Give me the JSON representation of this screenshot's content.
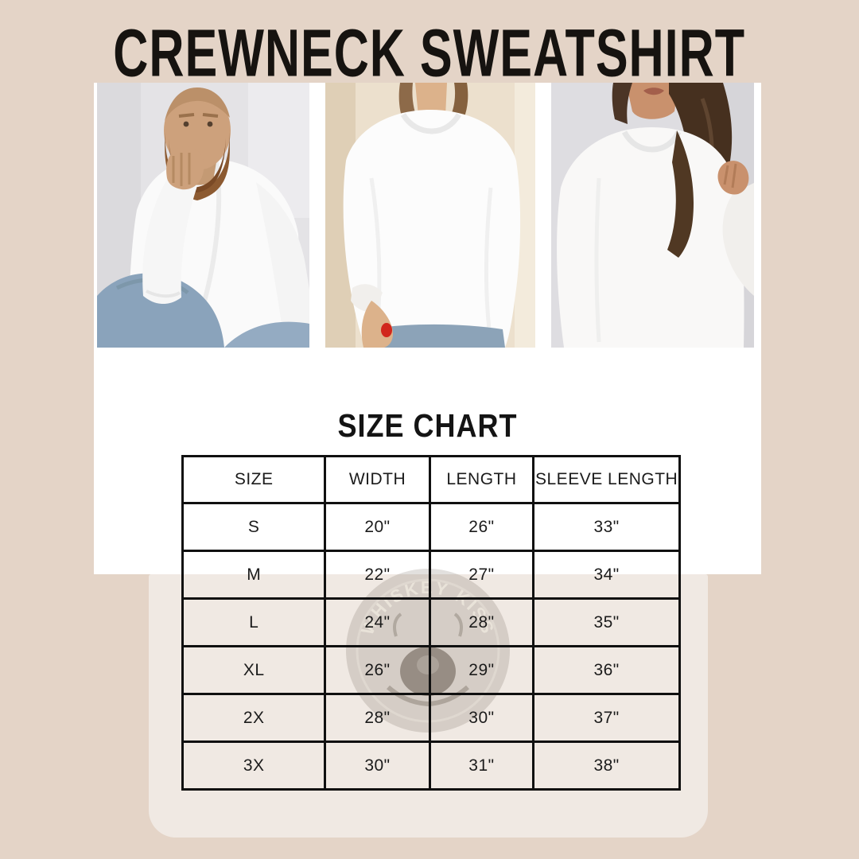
{
  "page": {
    "title": "CREWNECK SWEATSHIRT"
  },
  "photos": [
    {
      "label": "Bearded man sitting in white crewneck sweatshirt and jeans, chin resting on hand"
    },
    {
      "label": "Woman torso in oversized white crewneck sweatshirt, hand with red nail at jeans pocket"
    },
    {
      "label": "Woman with long dark wavy hair in white crewneck sweatshirt, hand raised to shoulder"
    }
  ],
  "chart_data": {
    "type": "table",
    "title": "SIZE CHART",
    "columns": [
      "SIZE",
      "WIDTH",
      "LENGTH",
      "SLEEVE LENGTH"
    ],
    "rows": [
      [
        "S",
        "20\"",
        "26\"",
        "33\""
      ],
      [
        "M",
        "22\"",
        "27\"",
        "34\""
      ],
      [
        "L",
        "24\"",
        "28\"",
        "35\""
      ],
      [
        "XL",
        "26\"",
        "29\"",
        "36\""
      ],
      [
        "2X",
        "28\"",
        "30\"",
        "37\""
      ],
      [
        "3X",
        "30\"",
        "31\"",
        "38\""
      ]
    ]
  },
  "watermark": {
    "label": "WHISKEY KISS"
  },
  "colors": {
    "background": "#e4d4c7",
    "card": "#ffffff",
    "panel": "#f0e9e3",
    "table_border": "#101010",
    "text": "#161310",
    "nail_accent": "#d1261c"
  }
}
